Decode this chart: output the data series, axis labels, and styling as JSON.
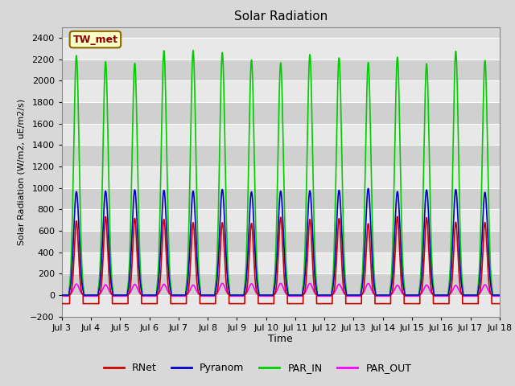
{
  "title": "Solar Radiation",
  "ylabel": "Solar Radiation (W/m2, uE/m2/s)",
  "xlabel": "Time",
  "ylim": [
    -200,
    2500
  ],
  "yticks": [
    -200,
    0,
    200,
    400,
    600,
    800,
    1000,
    1200,
    1400,
    1600,
    1800,
    2000,
    2200,
    2400
  ],
  "xlim_days": [
    3,
    18
  ],
  "xtick_days": [
    3,
    4,
    5,
    6,
    7,
    8,
    9,
    10,
    11,
    12,
    13,
    14,
    15,
    16,
    17,
    18
  ],
  "xtick_labels": [
    "Jul 3",
    "Jul 4",
    "Jul 5",
    "Jul 6",
    "Jul 7",
    "Jul 8",
    "Jul 9",
    "Jul 10",
    "Jul 11",
    "Jul 12",
    "Jul 13",
    "Jul 14",
    "Jul 15",
    "Jul 16",
    "Jul 17",
    "Jul 18"
  ],
  "station_label": "TW_met",
  "station_box_facecolor": "#ffffc8",
  "station_box_edgecolor": "#886600",
  "series": {
    "RNet": {
      "color": "#cc0000",
      "lw": 1.2
    },
    "Pyranom": {
      "color": "#0000cc",
      "lw": 1.2
    },
    "PAR_IN": {
      "color": "#00cc00",
      "lw": 1.2
    },
    "PAR_OUT": {
      "color": "#ff00ff",
      "lw": 1.2
    }
  },
  "fig_bg_color": "#d8d8d8",
  "plot_bg_color": "#d8d8d8",
  "grid_color": "#ffffff",
  "band_color_light": "#e8e8e8",
  "band_color_dark": "#d0d0d0",
  "n_days": 15,
  "day_start": 3,
  "RNet_peak": 700,
  "Pyranom_peak": 980,
  "PAR_IN_peak": 2220,
  "PAR_OUT_peak": 100,
  "RNet_night": -80,
  "Pyranom_night": 0,
  "PAR_IN_night": 0,
  "PAR_OUT_night": -10
}
